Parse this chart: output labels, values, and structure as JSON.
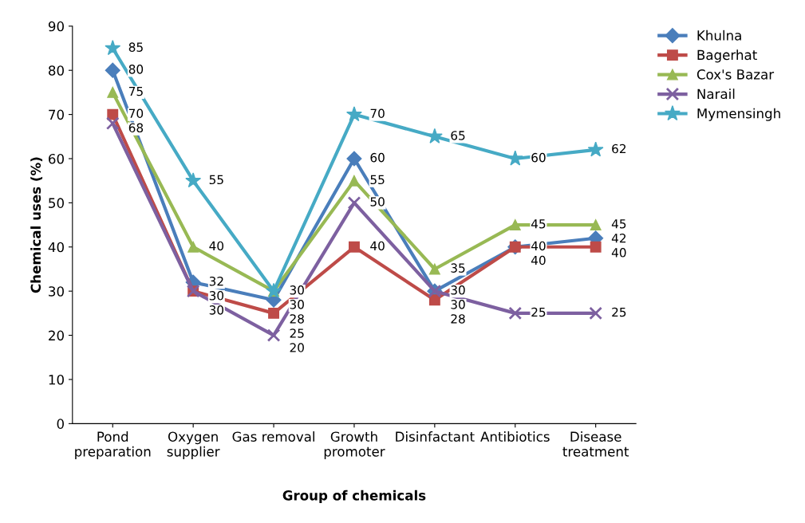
{
  "chart_data": {
    "type": "line",
    "xlabel": "Group of chemicals",
    "ylabel": "Chemical uses (%)",
    "categories": [
      "Pond\npreparation",
      "Oxygen\nsupplier",
      "Gas removal",
      "Growth\npromoter",
      "Disinfactant",
      "Antibiotics",
      "Disease\ntreatment"
    ],
    "series": [
      {
        "name": "Khulna",
        "color": "#4a7ebb",
        "marker": "diamond",
        "values": [
          80,
          32,
          28,
          60,
          30,
          40,
          42
        ]
      },
      {
        "name": "Bagerhat",
        "color": "#be4b48",
        "marker": "square",
        "values": [
          70,
          30,
          25,
          40,
          28,
          40,
          40
        ]
      },
      {
        "name": "Cox's Bazar",
        "color": "#98b954",
        "marker": "triangle",
        "values": [
          75,
          40,
          30,
          55,
          35,
          45,
          45
        ]
      },
      {
        "name": "Narail",
        "color": "#7d60a0",
        "marker": "cross",
        "values": [
          68,
          30,
          20,
          50,
          30,
          25,
          25
        ]
      },
      {
        "name": "Mymensingh",
        "color": "#46aac5",
        "marker": "star",
        "values": [
          85,
          55,
          30,
          70,
          65,
          60,
          62
        ]
      }
    ],
    "ylim": [
      0,
      90
    ],
    "yticks": [
      0,
      10,
      20,
      30,
      40,
      50,
      60,
      70,
      80,
      90
    ],
    "data_labels": true,
    "legend": "top right",
    "grid": false
  }
}
